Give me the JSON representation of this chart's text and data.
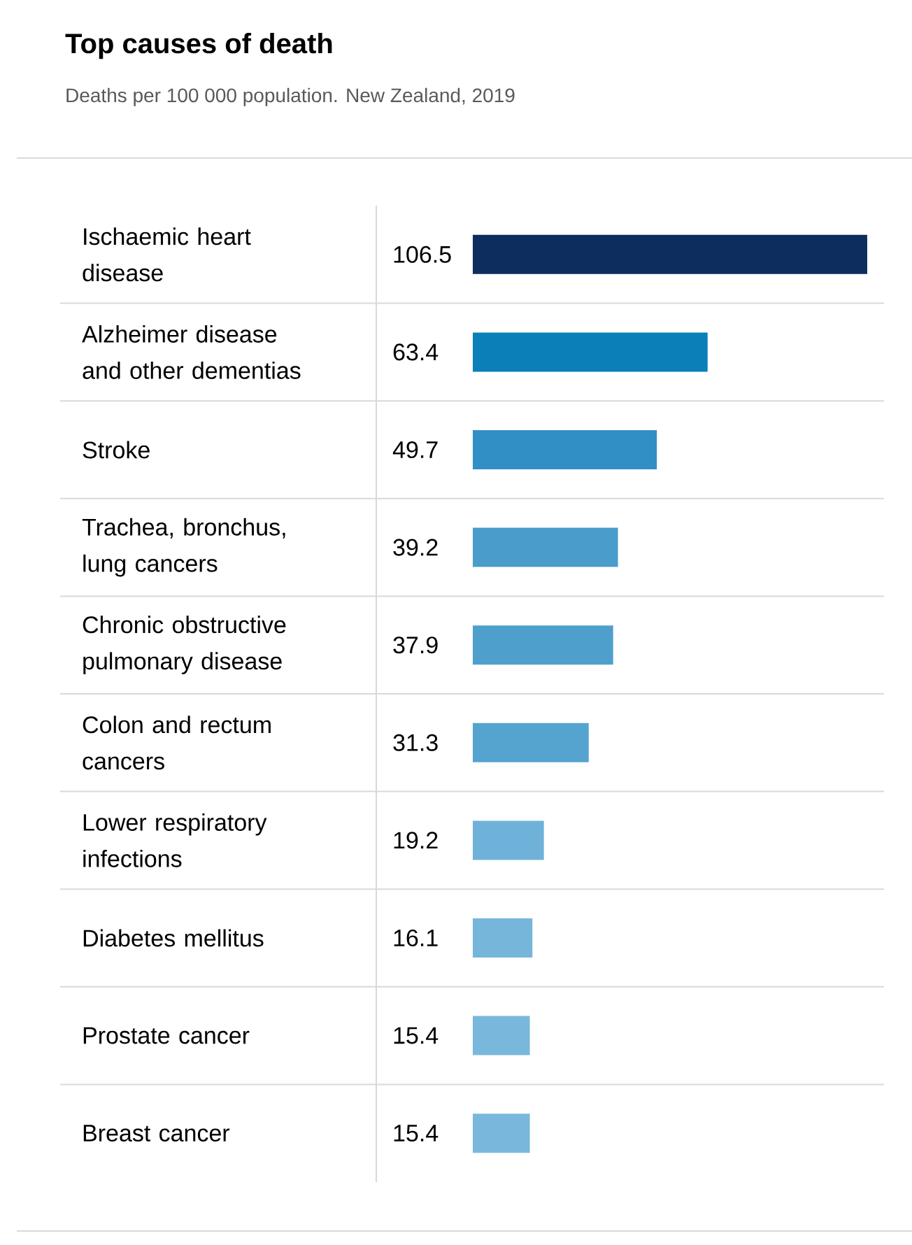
{
  "chart_data": {
    "type": "bar",
    "orientation": "horizontal",
    "title": "Top causes of death",
    "subtitle": "Deaths per 100 000 population. New Zealand, 2019",
    "categories": [
      "Ischaemic heart disease",
      "Alzheimer disease and other dementias",
      "Stroke",
      "Trachea, bronchus, lung cancers",
      "Chronic obstructive pulmonary disease",
      "Colon and rectum cancers",
      "Lower respiratory infections",
      "Diabetes mellitus",
      "Prostate cancer",
      "Breast cancer"
    ],
    "values": [
      106.5,
      63.4,
      49.7,
      39.2,
      37.9,
      31.3,
      19.2,
      16.1,
      15.4,
      15.4
    ],
    "colors": [
      "#0d2d5e",
      "#0a7fb8",
      "#318fc6",
      "#4a9ccb",
      "#4f9fcd",
      "#55a4d0",
      "#6fb2d9",
      "#76b6db",
      "#79b8dc",
      "#79b8dc"
    ],
    "data_labels": true
  }
}
